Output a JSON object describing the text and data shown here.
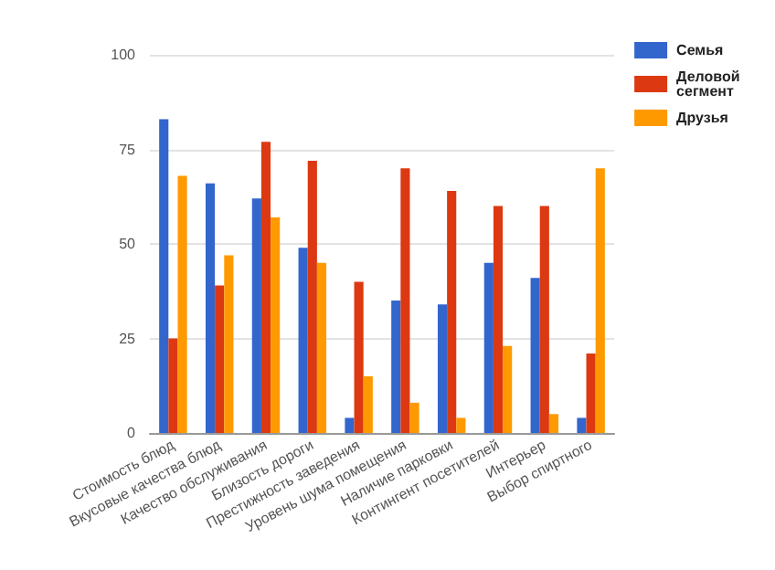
{
  "chart_data": {
    "type": "bar",
    "categories": [
      "Стоимость блюд",
      "Вкусовые качества блюд",
      "Качество обслуживания",
      "Близость дороги",
      "Престижность заведения",
      "Уровень шума помещения",
      "Наличие парковки",
      "Контингент посетителей",
      "Интерьер",
      "Выбор спиртного"
    ],
    "series": [
      {
        "name": "Семья",
        "color": "#3366cc",
        "values": [
          83,
          66,
          62,
          49,
          4,
          35,
          34,
          45,
          41,
          4
        ]
      },
      {
        "name": "Деловой сегмент",
        "color": "#dc3912",
        "values": [
          25,
          39,
          77,
          72,
          40,
          70,
          64,
          60,
          60,
          21
        ]
      },
      {
        "name": "Друзья",
        "color": "#ff9900",
        "values": [
          68,
          47,
          57,
          45,
          15,
          8,
          4,
          23,
          5,
          70
        ]
      }
    ],
    "ylim": [
      0,
      100
    ],
    "yticks": [
      0,
      25,
      50,
      75,
      100
    ],
    "grid": "y",
    "legend": "top right"
  }
}
